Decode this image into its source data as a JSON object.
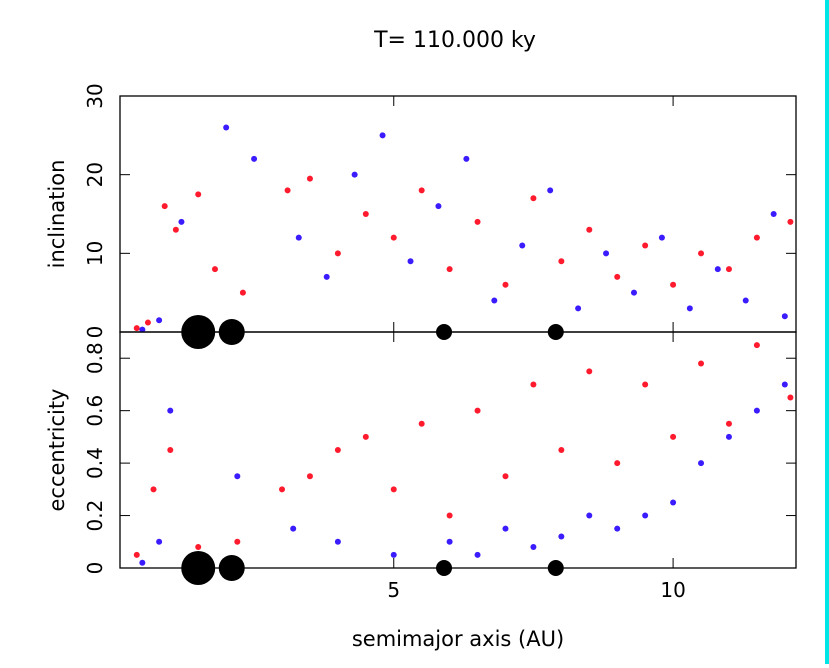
{
  "title": "T=  110.000 ky",
  "colors": {
    "red": "#ff1a2e",
    "blue": "#3a1cff",
    "planet": "#000000",
    "edge": "#00e5e5"
  },
  "chart_data": [
    {
      "type": "scatter",
      "panel": "top",
      "ylabel": "inclination",
      "xlim": [
        0.1,
        12.2
      ],
      "ylim": [
        0,
        30
      ],
      "yticks": [
        0,
        10,
        20,
        30
      ],
      "grid": false,
      "series": [
        {
          "color": "red",
          "points": [
            [
              0.4,
              0.5
            ],
            [
              0.6,
              1.2
            ],
            [
              0.9,
              16.0
            ],
            [
              1.1,
              13.0
            ],
            [
              1.5,
              17.5
            ],
            [
              1.8,
              8.0
            ],
            [
              2.3,
              5.0
            ],
            [
              3.1,
              18.0
            ],
            [
              3.5,
              19.5
            ],
            [
              4.0,
              10.0
            ],
            [
              4.5,
              15.0
            ],
            [
              5.0,
              12.0
            ],
            [
              5.5,
              18.0
            ],
            [
              6.0,
              8.0
            ],
            [
              6.5,
              14.0
            ],
            [
              7.0,
              6.0
            ],
            [
              7.5,
              17.0
            ],
            [
              8.0,
              9.0
            ],
            [
              8.5,
              13.0
            ],
            [
              9.0,
              7.0
            ],
            [
              9.5,
              11.0
            ],
            [
              10.0,
              6.0
            ],
            [
              10.5,
              10.0
            ],
            [
              11.0,
              8.0
            ],
            [
              11.5,
              12.0
            ],
            [
              12.1,
              14.0
            ]
          ]
        },
        {
          "color": "blue",
          "points": [
            [
              0.5,
              0.3
            ],
            [
              0.8,
              1.5
            ],
            [
              1.2,
              14.0
            ],
            [
              2.0,
              26.0
            ],
            [
              2.5,
              22.0
            ],
            [
              3.3,
              12.0
            ],
            [
              3.8,
              7.0
            ],
            [
              4.3,
              20.0
            ],
            [
              4.8,
              25.0
            ],
            [
              5.3,
              9.0
            ],
            [
              5.8,
              16.0
            ],
            [
              6.3,
              22.0
            ],
            [
              6.8,
              4.0
            ],
            [
              7.3,
              11.0
            ],
            [
              7.8,
              18.0
            ],
            [
              8.3,
              3.0
            ],
            [
              8.8,
              10.0
            ],
            [
              9.3,
              5.0
            ],
            [
              9.8,
              12.0
            ],
            [
              10.3,
              3.0
            ],
            [
              10.8,
              8.0
            ],
            [
              11.3,
              4.0
            ],
            [
              11.8,
              15.0
            ],
            [
              12.0,
              2.0
            ]
          ]
        }
      ],
      "planets": [
        {
          "a": 1.5,
          "size": "large"
        },
        {
          "a": 2.1,
          "size": "medium"
        },
        {
          "a": 5.9,
          "size": "small"
        },
        {
          "a": 7.9,
          "size": "small"
        }
      ]
    },
    {
      "type": "scatter",
      "panel": "bottom",
      "ylabel": "eccentricity",
      "xlabel": "semimajor axis (AU)",
      "xlim": [
        0.1,
        12.2
      ],
      "ylim": [
        0,
        0.9
      ],
      "xticks": [
        5,
        10
      ],
      "yticks": [
        0,
        0.2,
        0.4,
        0.6,
        0.8
      ],
      "grid": false,
      "series": [
        {
          "color": "red",
          "points": [
            [
              0.4,
              0.05
            ],
            [
              0.7,
              0.3
            ],
            [
              1.0,
              0.45
            ],
            [
              1.5,
              0.08
            ],
            [
              2.2,
              0.1
            ],
            [
              3.0,
              0.3
            ],
            [
              3.5,
              0.35
            ],
            [
              4.0,
              0.45
            ],
            [
              4.5,
              0.5
            ],
            [
              5.0,
              0.3
            ],
            [
              5.5,
              0.55
            ],
            [
              6.0,
              0.2
            ],
            [
              6.5,
              0.6
            ],
            [
              7.0,
              0.35
            ],
            [
              7.5,
              0.7
            ],
            [
              8.0,
              0.45
            ],
            [
              8.5,
              0.75
            ],
            [
              9.0,
              0.4
            ],
            [
              9.5,
              0.7
            ],
            [
              10.0,
              0.5
            ],
            [
              10.5,
              0.78
            ],
            [
              11.0,
              0.55
            ],
            [
              11.5,
              0.85
            ],
            [
              12.1,
              0.65
            ]
          ]
        },
        {
          "color": "blue",
          "points": [
            [
              0.5,
              0.02
            ],
            [
              0.8,
              0.1
            ],
            [
              1.0,
              0.6
            ],
            [
              2.2,
              0.35
            ],
            [
              3.2,
              0.15
            ],
            [
              4.0,
              0.1
            ],
            [
              5.0,
              0.05
            ],
            [
              6.0,
              0.1
            ],
            [
              6.5,
              0.05
            ],
            [
              7.0,
              0.15
            ],
            [
              7.5,
              0.08
            ],
            [
              8.0,
              0.12
            ],
            [
              8.5,
              0.2
            ],
            [
              9.0,
              0.15
            ],
            [
              9.5,
              0.2
            ],
            [
              10.0,
              0.25
            ],
            [
              10.5,
              0.4
            ],
            [
              11.0,
              0.5
            ],
            [
              11.5,
              0.6
            ],
            [
              12.0,
              0.7
            ]
          ]
        }
      ],
      "planets": [
        {
          "a": 1.5,
          "size": "large"
        },
        {
          "a": 2.1,
          "size": "medium"
        },
        {
          "a": 5.9,
          "size": "small"
        },
        {
          "a": 7.9,
          "size": "small"
        }
      ]
    }
  ]
}
